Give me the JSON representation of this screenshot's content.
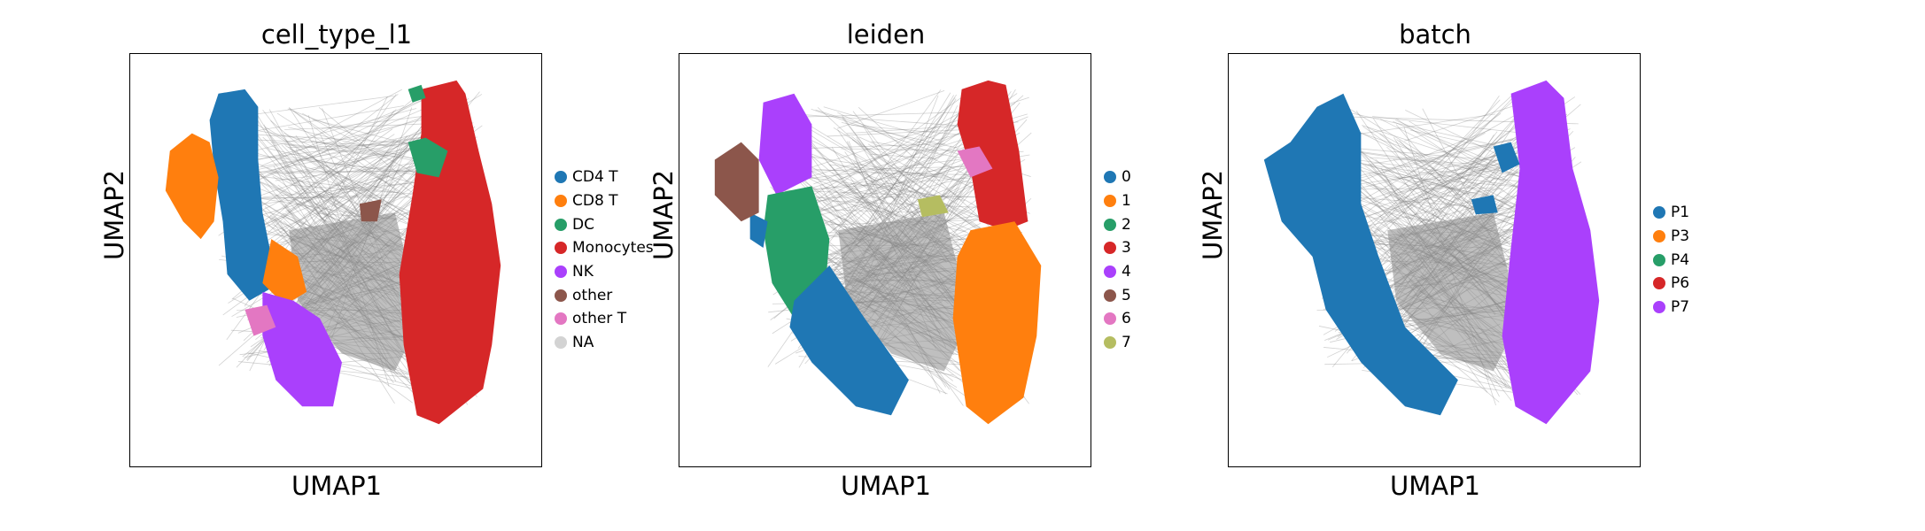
{
  "chart_data": [
    {
      "type": "scatter",
      "title": "cell_type_l1",
      "xlabel": "UMAP1",
      "ylabel": "UMAP2",
      "legend": [
        {
          "label": "CD4 T",
          "color": "#1f77b4"
        },
        {
          "label": "CD8 T",
          "color": "#ff7f0e"
        },
        {
          "label": "DC",
          "color": "#279e68"
        },
        {
          "label": "Monocytes",
          "color": "#d62728"
        },
        {
          "label": "NK",
          "color": "#aa40fc"
        },
        {
          "label": "other",
          "color": "#8c564b"
        },
        {
          "label": "other T",
          "color": "#e377c2"
        },
        {
          "label": "NA",
          "color": "#d3d3d3"
        }
      ]
    },
    {
      "type": "scatter",
      "title": "leiden",
      "xlabel": "UMAP1",
      "ylabel": "UMAP2",
      "legend": [
        {
          "label": "0",
          "color": "#1f77b4"
        },
        {
          "label": "1",
          "color": "#ff7f0e"
        },
        {
          "label": "2",
          "color": "#279e68"
        },
        {
          "label": "3",
          "color": "#d62728"
        },
        {
          "label": "4",
          "color": "#aa40fc"
        },
        {
          "label": "5",
          "color": "#8c564b"
        },
        {
          "label": "6",
          "color": "#e377c2"
        },
        {
          "label": "7",
          "color": "#b5bd61"
        }
      ]
    },
    {
      "type": "scatter",
      "title": "batch",
      "xlabel": "UMAP1",
      "ylabel": "UMAP2",
      "legend": [
        {
          "label": "P1",
          "color": "#1f77b4"
        },
        {
          "label": "P3",
          "color": "#ff7f0e"
        },
        {
          "label": "P4",
          "color": "#279e68"
        },
        {
          "label": "P6",
          "color": "#d62728"
        },
        {
          "label": "P7",
          "color": "#aa40fc"
        }
      ]
    }
  ]
}
